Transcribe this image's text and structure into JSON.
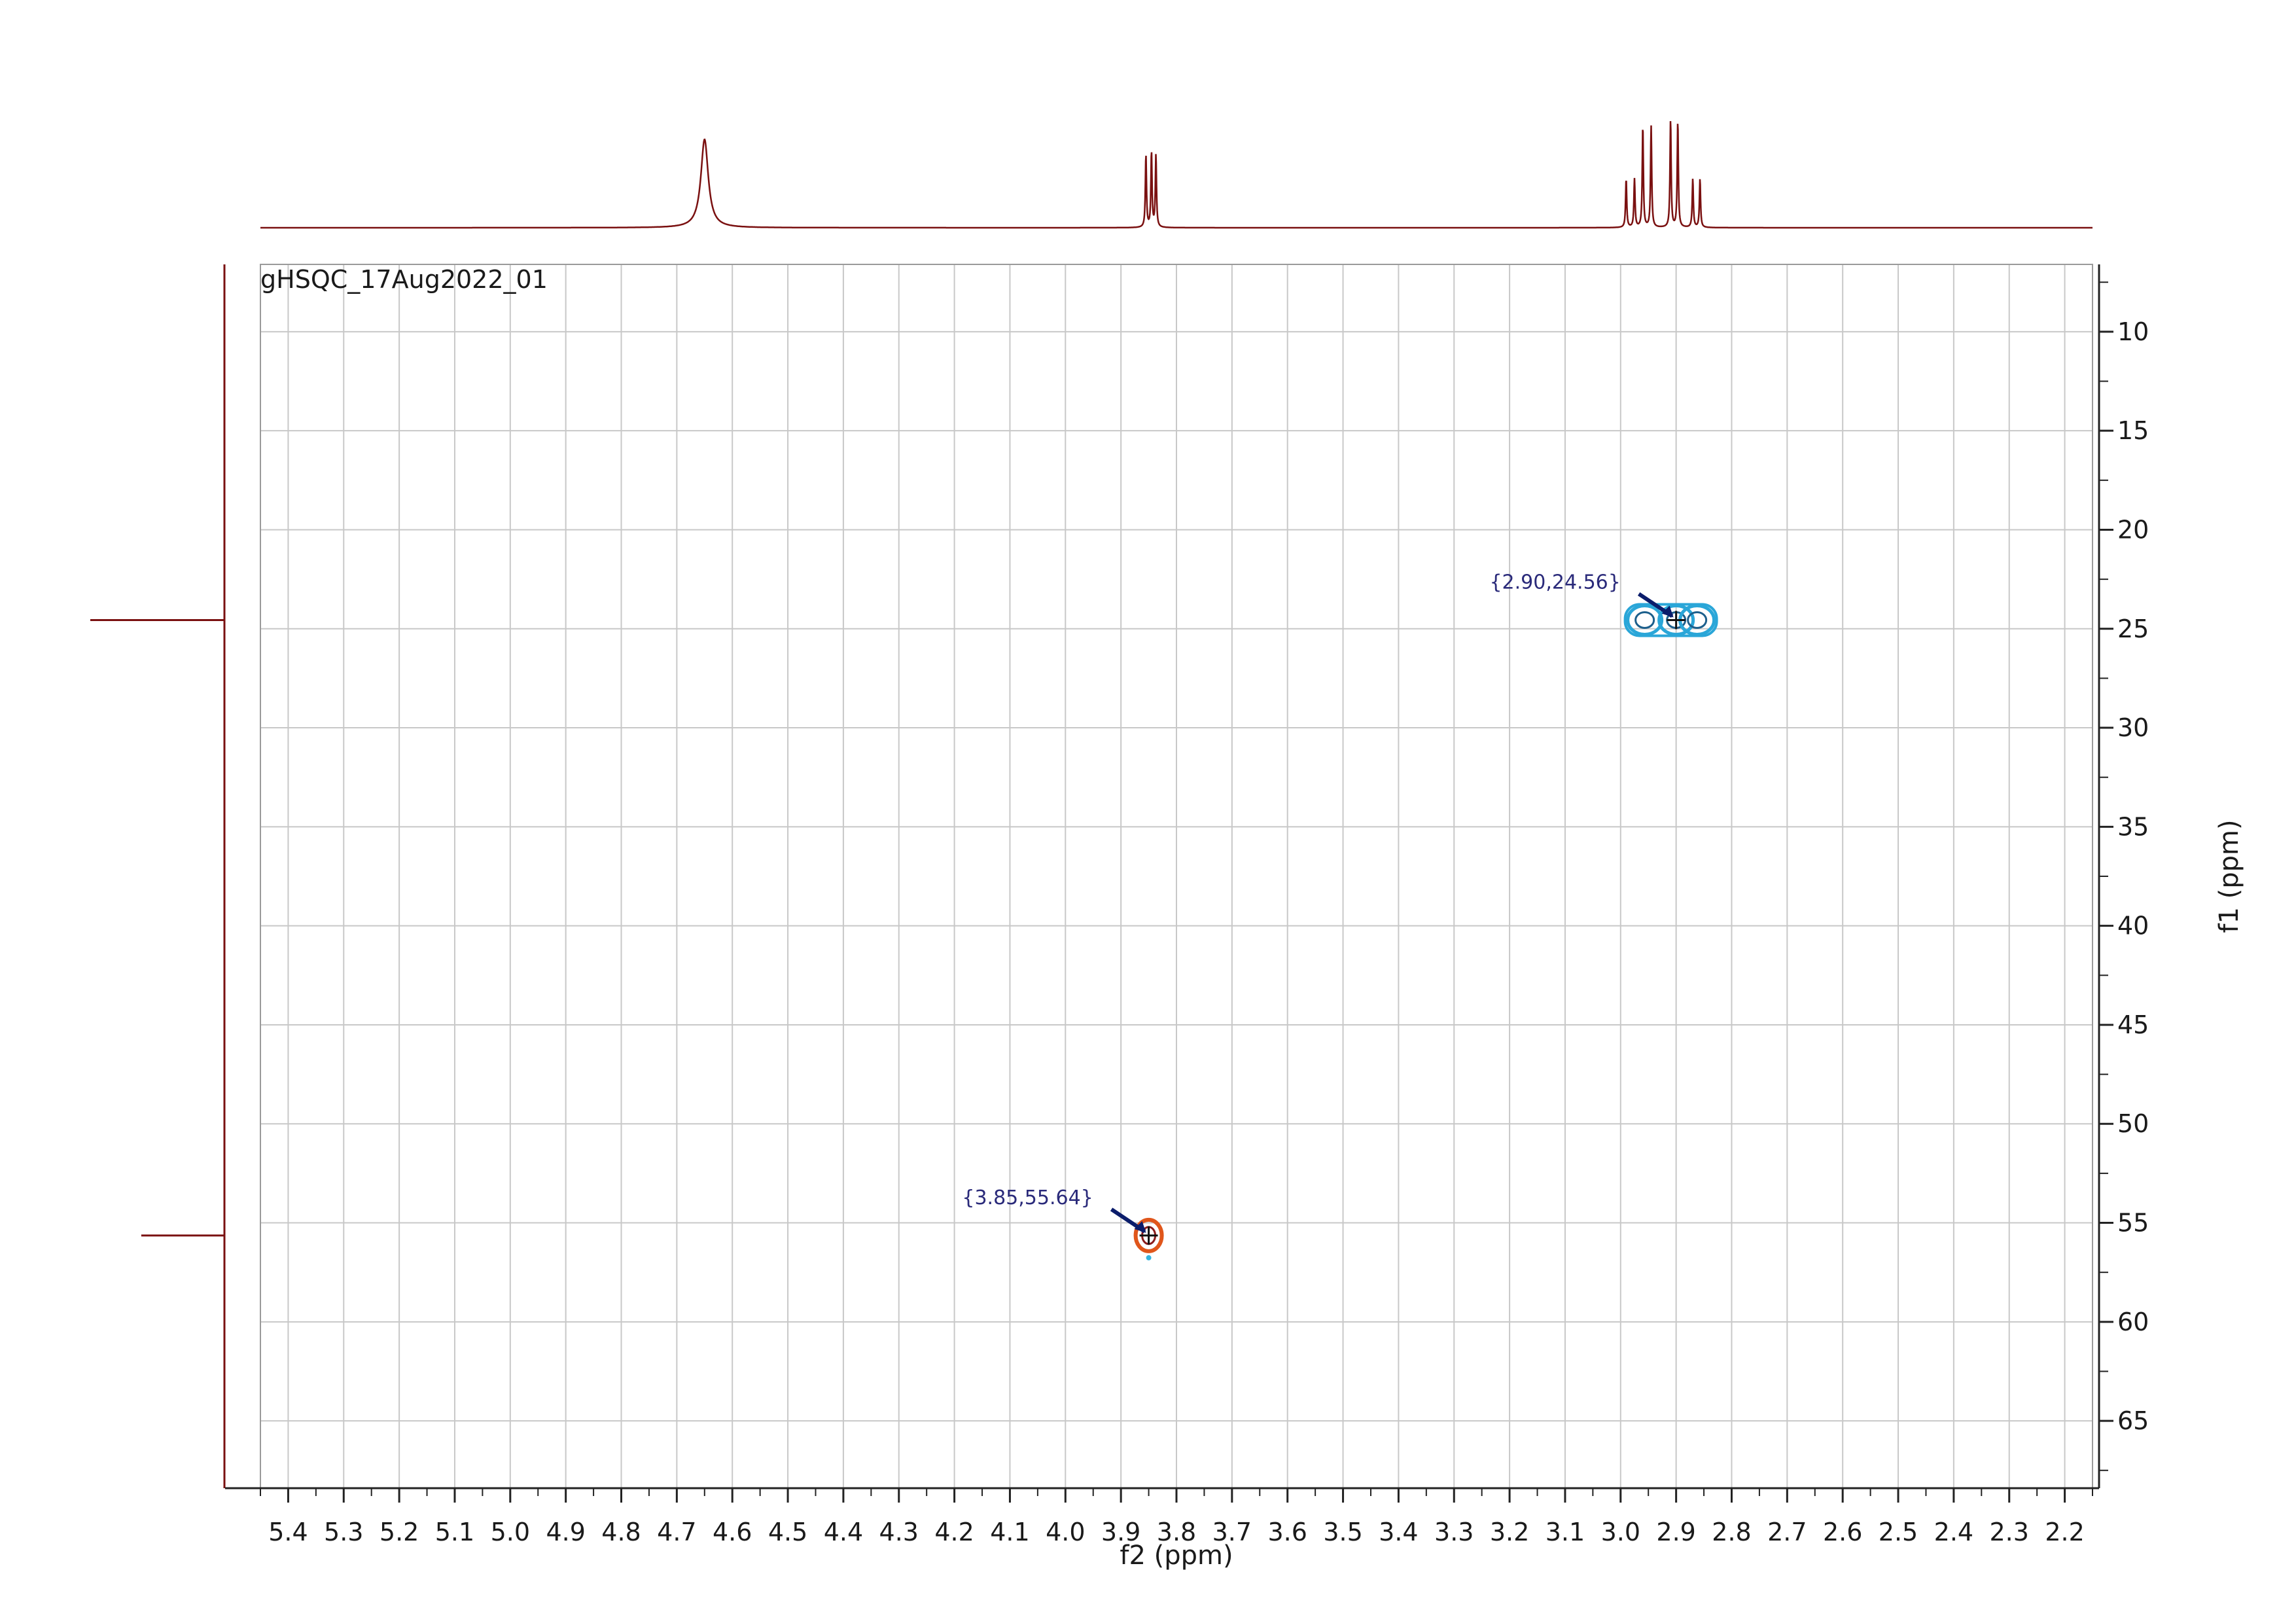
{
  "chart_data": {
    "type": "heatmap",
    "title": "gHSQC_17Aug2022_01",
    "xlabel": "f2 (ppm)",
    "ylabel": "f1 (ppm)",
    "xlim": [
      5.45,
      2.15
    ],
    "ylim": [
      6.6,
      68.4
    ],
    "x_ticks": [
      "5.4",
      "5.3",
      "5.2",
      "5.1",
      "5.0",
      "4.9",
      "4.8",
      "4.7",
      "4.6",
      "4.5",
      "4.4",
      "4.3",
      "4.2",
      "4.1",
      "4.0",
      "3.9",
      "3.8",
      "3.7",
      "3.6",
      "3.5",
      "3.4",
      "3.3",
      "3.2",
      "3.1",
      "3.0",
      "2.9",
      "2.8",
      "2.7",
      "2.6",
      "2.5",
      "2.4",
      "2.3",
      "2.2"
    ],
    "y_ticks": [
      "10",
      "15",
      "20",
      "25",
      "30",
      "35",
      "40",
      "45",
      "50",
      "55",
      "60",
      "65"
    ],
    "grid": true,
    "cross_peaks": [
      {
        "x": 2.9,
        "y": 24.56,
        "label": "{2.90,24.56}",
        "color": "#2aa6d8"
      },
      {
        "x": 3.85,
        "y": 55.64,
        "label": "{3.85,55.64}",
        "color": "#e0561b"
      }
    ],
    "f2_projection_peaks": [
      {
        "x": 4.65,
        "height": 1.0,
        "width": 0.008
      },
      {
        "x": 3.855,
        "height": 0.82,
        "width": 0.0012
      },
      {
        "x": 3.845,
        "height": 0.85,
        "width": 0.0012
      },
      {
        "x": 3.837,
        "height": 0.82,
        "width": 0.0012
      },
      {
        "x": 2.99,
        "height": 0.55,
        "width": 0.0012
      },
      {
        "x": 2.975,
        "height": 0.55,
        "width": 0.0012
      },
      {
        "x": 2.96,
        "height": 1.15,
        "width": 0.0012
      },
      {
        "x": 2.945,
        "height": 1.15,
        "width": 0.0012
      },
      {
        "x": 2.91,
        "height": 1.22,
        "width": 0.0012
      },
      {
        "x": 2.897,
        "height": 1.2,
        "width": 0.0012
      },
      {
        "x": 2.87,
        "height": 0.55,
        "width": 0.0012
      },
      {
        "x": 2.857,
        "height": 0.55,
        "width": 0.0012
      }
    ],
    "f1_projection_peaks": [
      {
        "y": 24.56,
        "height": 1.0
      },
      {
        "y": 55.64,
        "height": 0.62
      }
    ],
    "colors": {
      "projection": "#7a1010",
      "grid": "#c8c8c8",
      "arrow": "#0b1d6b"
    }
  }
}
